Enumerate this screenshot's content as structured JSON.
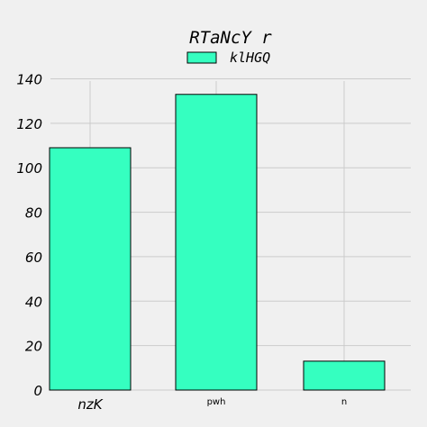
{
  "chart_data": {
    "type": "bar",
    "title": "RTaNcY r",
    "categories": [
      "nzK",
      "pwh",
      "n"
    ],
    "series": [
      {
        "name": "klHGQ",
        "values": [
          109,
          133,
          13
        ],
        "color": "#35ffc0"
      }
    ],
    "ylim": [
      0,
      140
    ],
    "yticks": [
      0,
      20,
      40,
      60,
      80,
      100,
      120,
      140
    ],
    "xlabel": "",
    "ylabel": "",
    "grid": true,
    "legend": "top-center",
    "background": "#f0f0f0"
  }
}
